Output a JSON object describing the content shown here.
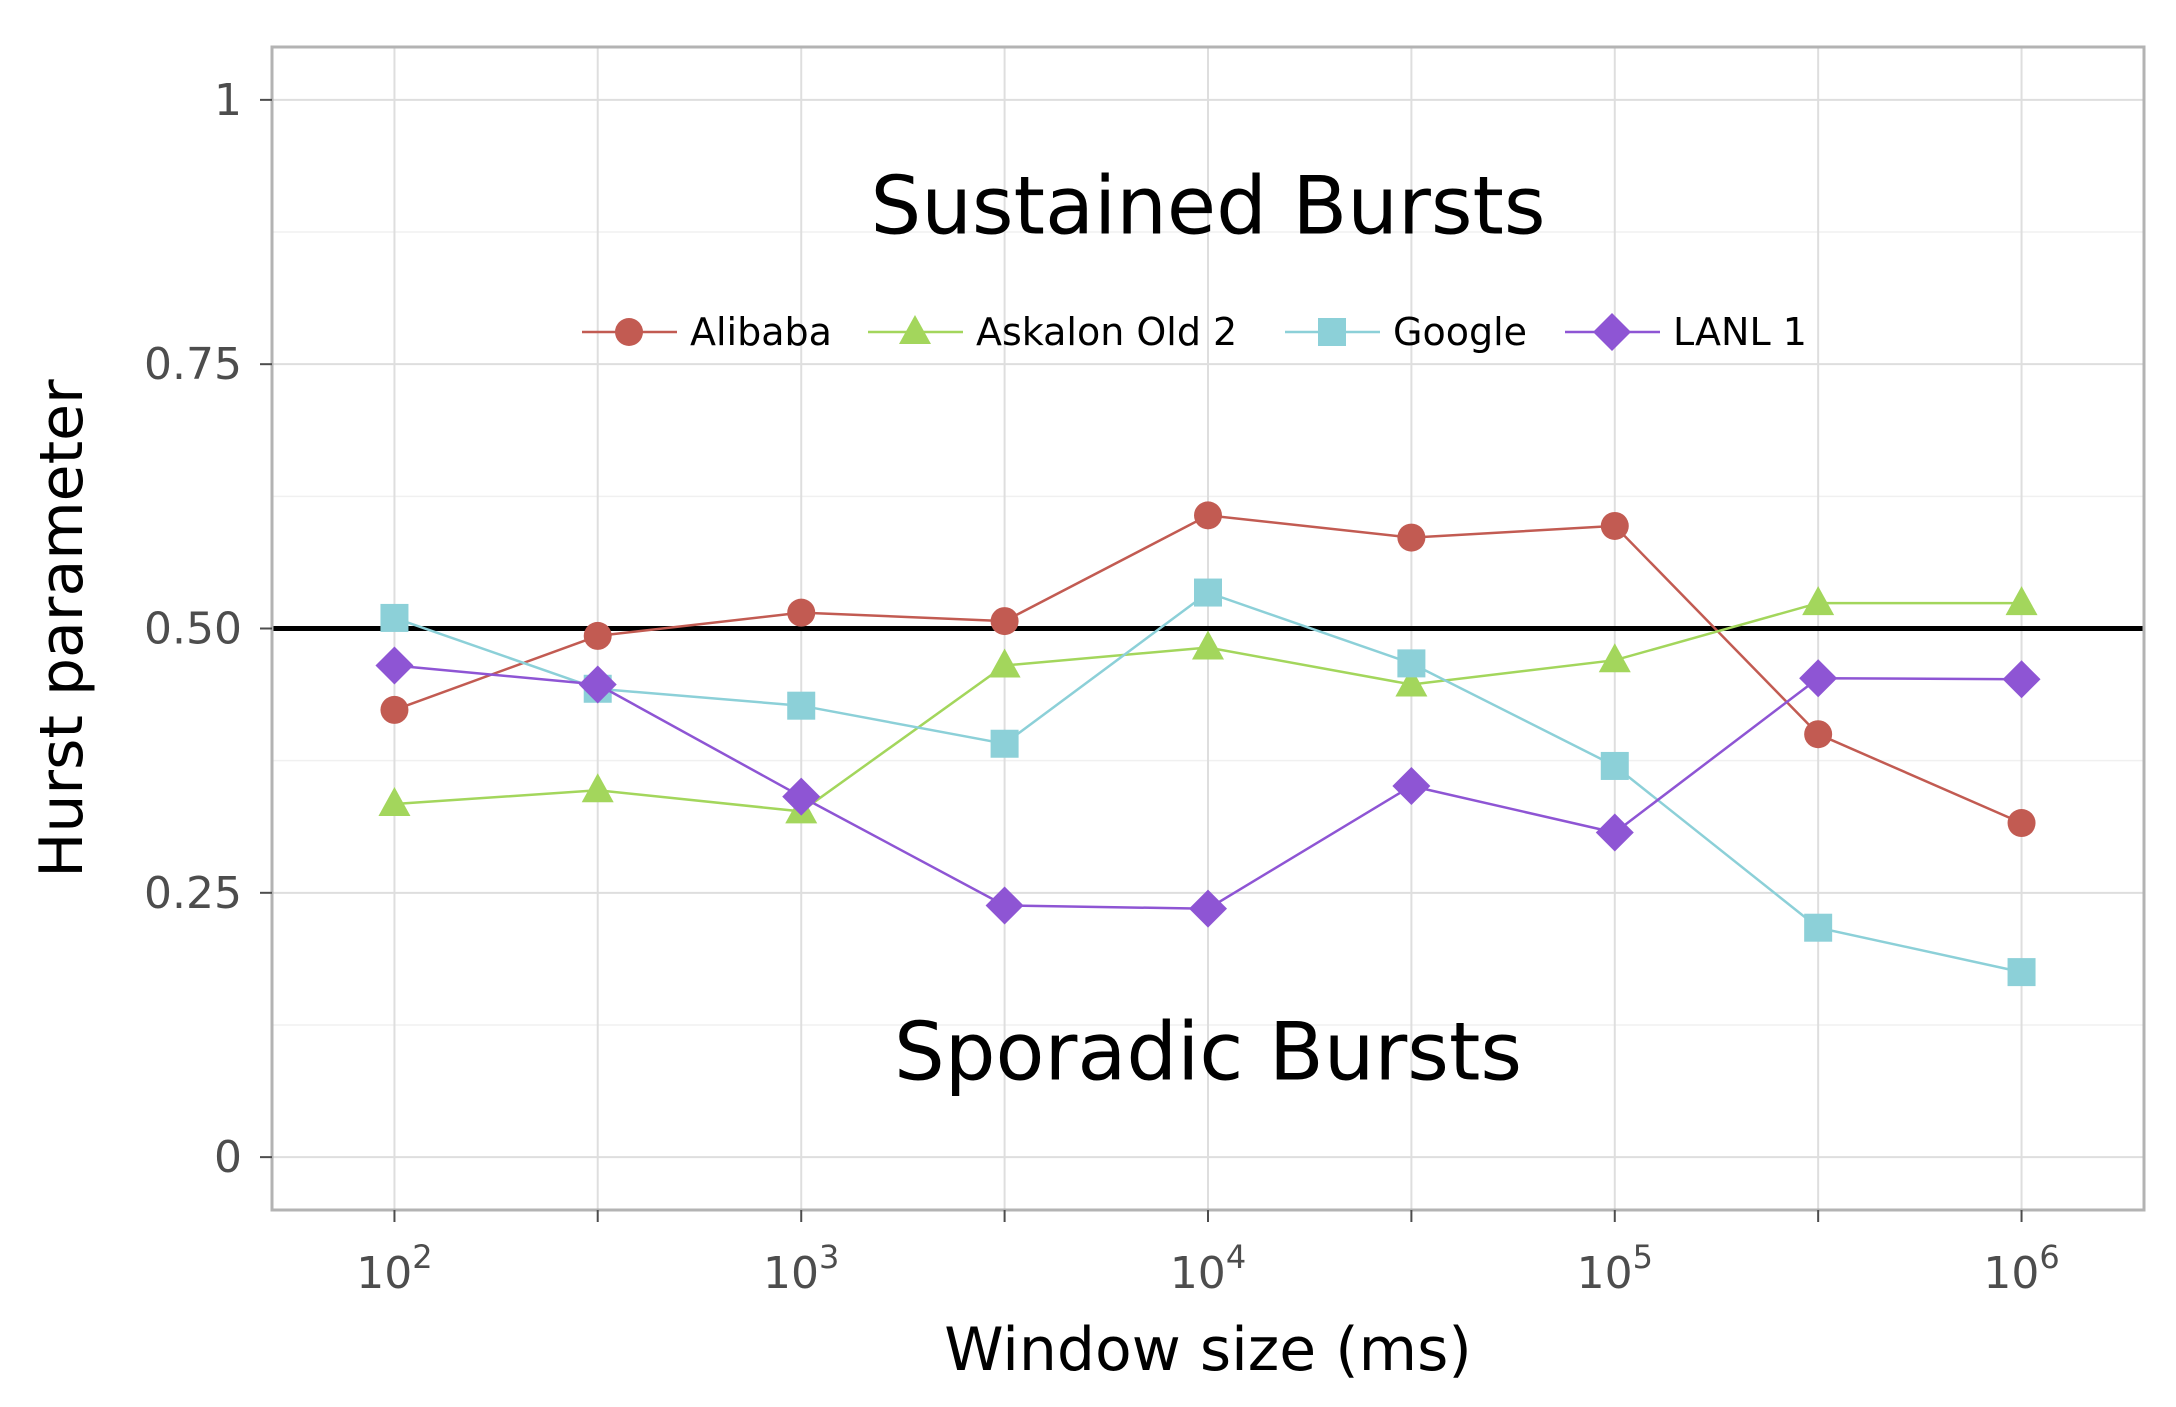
{
  "chart_data": {
    "type": "line",
    "xscale": "log10",
    "xlabel": "Window size (ms)",
    "ylabel": "Hurst parameter",
    "xlim": [
      50,
      2000000
    ],
    "ylim": [
      -0.05,
      1.05
    ],
    "x_ticks": [
      {
        "value": 100,
        "base": "10",
        "exp": "2"
      },
      {
        "value": 1000,
        "base": "10",
        "exp": "3"
      },
      {
        "value": 10000,
        "base": "10",
        "exp": "4"
      },
      {
        "value": 100000,
        "base": "10",
        "exp": "5"
      },
      {
        "value": 1000000,
        "base": "10",
        "exp": "6"
      }
    ],
    "x_minor_ticks": [
      316,
      3162,
      31623,
      316228
    ],
    "y_ticks": [
      {
        "value": 0,
        "label": "0"
      },
      {
        "value": 0.25,
        "label": "0.25"
      },
      {
        "value": 0.5,
        "label": "0.50"
      },
      {
        "value": 0.75,
        "label": "0.75"
      },
      {
        "value": 1,
        "label": "1"
      }
    ],
    "y_minor_gridlines": [
      0.125,
      0.375,
      0.625,
      0.875
    ],
    "grid": true,
    "reference_line": {
      "y": 0.5,
      "color": "#000000"
    },
    "annotations": [
      {
        "text": "Sustained Bursts",
        "x": 10000,
        "y": 0.9
      },
      {
        "text": "Sporadic Bursts",
        "x": 10000,
        "y": 0.1
      }
    ],
    "legend_position": "top-center",
    "x": [
      100,
      316,
      1000,
      3162,
      10000,
      31623,
      100000,
      316228,
      1000000
    ],
    "series": [
      {
        "name": "Alibaba",
        "color": "#C25B52",
        "marker": "circle",
        "values": [
          0.423,
          0.493,
          0.515,
          0.507,
          0.607,
          0.586,
          0.597,
          0.4,
          0.316
        ]
      },
      {
        "name": "Askalon Old 2",
        "color": "#A3D65C",
        "marker": "triangle",
        "values": [
          0.334,
          0.347,
          0.327,
          0.465,
          0.482,
          0.447,
          0.47,
          0.524,
          0.524
        ]
      },
      {
        "name": "Google",
        "color": "#8CD0D8",
        "marker": "square",
        "values": [
          0.51,
          0.443,
          0.427,
          0.391,
          0.534,
          0.467,
          0.37,
          0.217,
          0.175
        ]
      },
      {
        "name": "LANL 1",
        "color": "#8E55D4",
        "marker": "diamond",
        "values": [
          0.465,
          0.447,
          0.341,
          0.238,
          0.235,
          0.351,
          0.307,
          0.453,
          0.452
        ]
      }
    ]
  }
}
